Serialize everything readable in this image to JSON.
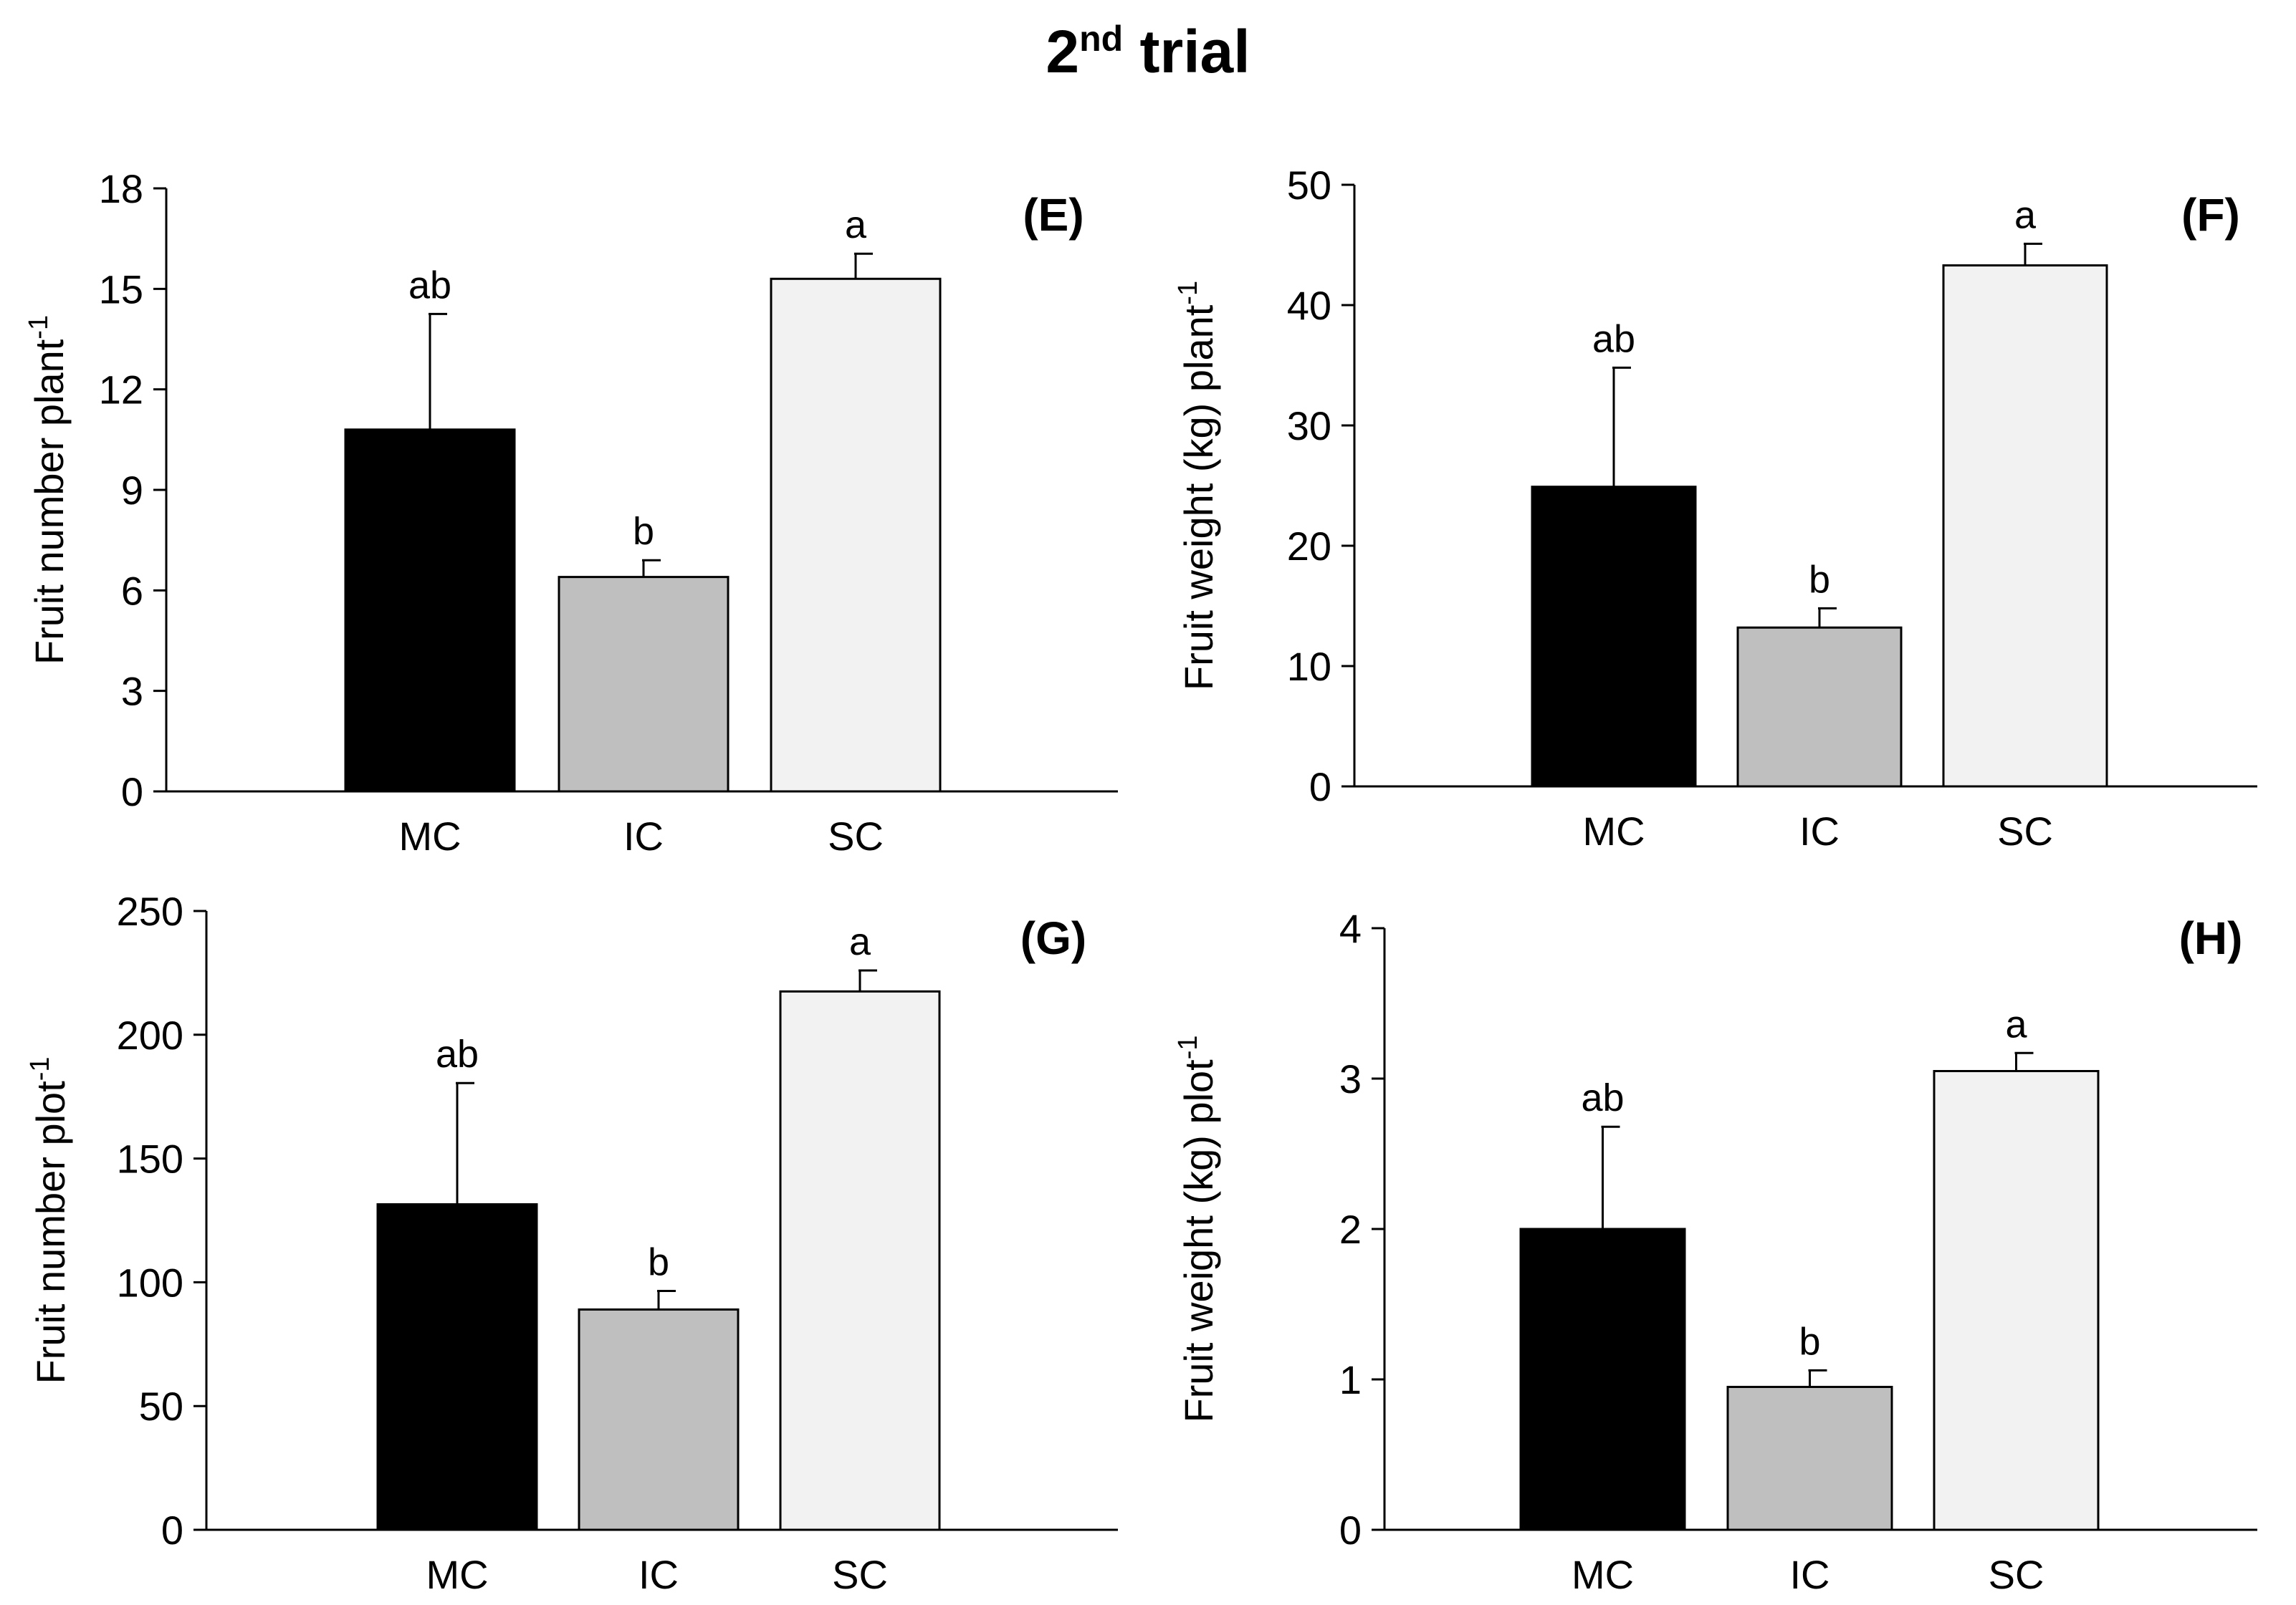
{
  "title": {
    "main": "2",
    "sup": "nd",
    "rest": " trial"
  },
  "colors": {
    "MC": "#000000",
    "IC": "#bfbfbf",
    "SC": "#f2f2f2",
    "stroke": "#000000"
  },
  "chart_data": [
    {
      "id": "E",
      "type": "bar",
      "panel_label": "(E)",
      "ylabel": "Fruit number plant",
      "ylabel_sup": "-1",
      "categories": [
        "MC",
        "IC",
        "SC"
      ],
      "values": [
        10.8,
        6.4,
        15.3
      ],
      "errors": [
        3.45,
        0.5,
        0.75
      ],
      "letters": [
        "ab",
        "b",
        "a"
      ],
      "ylim": [
        0,
        18
      ],
      "yticks": [
        0,
        3,
        6,
        9,
        12,
        15,
        18
      ],
      "ytick_labels": [
        "0",
        "3",
        "6",
        "9",
        "12",
        "15",
        "18"
      ]
    },
    {
      "id": "F",
      "type": "bar",
      "panel_label": "(F)",
      "ylabel": "Fruit weight (kg) plant",
      "ylabel_sup": "-1",
      "categories": [
        "MC",
        "IC",
        "SC"
      ],
      "values": [
        24.9,
        13.2,
        43.3
      ],
      "errors": [
        9.9,
        1.6,
        1.8
      ],
      "letters": [
        "ab",
        "b",
        "a"
      ],
      "ylim": [
        0,
        50
      ],
      "yticks": [
        0,
        10,
        20,
        30,
        40,
        50
      ],
      "ytick_labels": [
        "0",
        "10",
        "20",
        "30",
        "40",
        "50"
      ]
    },
    {
      "id": "G",
      "type": "bar",
      "panel_label": "(G)",
      "ylabel": "Fruit number plot",
      "ylabel_sup": "-1",
      "categories": [
        "MC",
        "IC",
        "SC"
      ],
      "values": [
        131.5,
        89,
        217.5
      ],
      "errors": [
        49,
        7.5,
        8.5
      ],
      "letters": [
        "ab",
        "b",
        "a"
      ],
      "ylim": [
        0,
        250
      ],
      "yticks": [
        0,
        50,
        100,
        150,
        200,
        250
      ],
      "ytick_labels": [
        "0",
        "50",
        "100",
        "150",
        "200",
        "250"
      ]
    },
    {
      "id": "H",
      "type": "bar",
      "panel_label": "(H)",
      "ylabel": "Fruit weight (kg) plot",
      "ylabel_sup": "-1",
      "categories": [
        "MC",
        "IC",
        "SC"
      ],
      "values": [
        2.0,
        0.95,
        3.05
      ],
      "errors": [
        0.68,
        0.11,
        0.12
      ],
      "letters": [
        "ab",
        "b",
        "a"
      ],
      "ylim": [
        0,
        4
      ],
      "yticks": [
        0,
        1,
        2,
        3,
        4
      ],
      "ytick_labels": [
        "0",
        "1",
        "2",
        "3",
        "4"
      ]
    }
  ]
}
